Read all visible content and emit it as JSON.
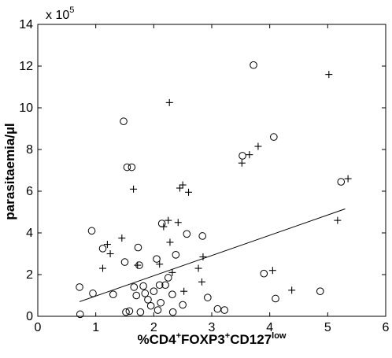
{
  "chart_data": {
    "type": "scatter",
    "title": "",
    "xlabel": {
      "parts": [
        {
          "text": "%CD4",
          "sup": false
        },
        {
          "text": "+",
          "sup": true
        },
        {
          "text": "FOXP3",
          "sup": false
        },
        {
          "text": "+",
          "sup": true
        },
        {
          "text": "CD127",
          "sup": false
        },
        {
          "text": "low",
          "sup": true
        }
      ]
    },
    "ylabel": "parasitaemia/µl",
    "y_multiplier": {
      "base": "x 10",
      "exponent": "5"
    },
    "xlim": [
      0,
      6
    ],
    "ylim": [
      0,
      14
    ],
    "x_ticks": [
      "0",
      "1",
      "2",
      "3",
      "4",
      "5",
      "6"
    ],
    "y_ticks": [
      "0",
      "2",
      "4",
      "6",
      "8",
      "10",
      "12",
      "14"
    ],
    "grid": false,
    "legend": null,
    "series": [
      {
        "marker": "circle",
        "points": [
          [
            0.72,
            1.4
          ],
          [
            0.73,
            0.1
          ],
          [
            0.93,
            4.1
          ],
          [
            0.95,
            1.1
          ],
          [
            1.12,
            3.25
          ],
          [
            1.3,
            1.05
          ],
          [
            1.48,
            9.35
          ],
          [
            1.5,
            2.6
          ],
          [
            1.52,
            0.2
          ],
          [
            1.54,
            7.15
          ],
          [
            1.58,
            0.25
          ],
          [
            1.62,
            7.15
          ],
          [
            1.66,
            1.4
          ],
          [
            1.7,
            1.0
          ],
          [
            1.73,
            3.3
          ],
          [
            1.75,
            2.45
          ],
          [
            1.77,
            0.2
          ],
          [
            1.82,
            1.45
          ],
          [
            1.85,
            1.1
          ],
          [
            1.9,
            0.8
          ],
          [
            1.95,
            0.5
          ],
          [
            2.0,
            1.2
          ],
          [
            2.05,
            2.75
          ],
          [
            2.07,
            0.3
          ],
          [
            2.1,
            1.5
          ],
          [
            2.12,
            0.65
          ],
          [
            2.14,
            4.45
          ],
          [
            2.2,
            1.5
          ],
          [
            2.25,
            1.85
          ],
          [
            2.32,
            1.05
          ],
          [
            2.33,
            0.2
          ],
          [
            2.38,
            2.95
          ],
          [
            2.5,
            0.55
          ],
          [
            2.57,
            3.95
          ],
          [
            2.84,
            3.85
          ],
          [
            2.93,
            0.9
          ],
          [
            3.1,
            0.35
          ],
          [
            3.22,
            0.3
          ],
          [
            3.53,
            7.7
          ],
          [
            3.72,
            12.05
          ],
          [
            3.9,
            2.05
          ],
          [
            4.07,
            8.6
          ],
          [
            4.1,
            0.85
          ],
          [
            4.87,
            1.2
          ],
          [
            5.23,
            6.45
          ]
        ]
      },
      {
        "marker": "plus",
        "points": [
          [
            1.12,
            2.3
          ],
          [
            1.2,
            3.45
          ],
          [
            1.25,
            3.0
          ],
          [
            1.45,
            3.75
          ],
          [
            1.65,
            6.1
          ],
          [
            1.72,
            2.45
          ],
          [
            2.1,
            2.5
          ],
          [
            2.17,
            4.3
          ],
          [
            2.25,
            4.6
          ],
          [
            2.27,
            10.25
          ],
          [
            2.28,
            3.55
          ],
          [
            2.32,
            2.1
          ],
          [
            2.42,
            4.5
          ],
          [
            2.45,
            6.15
          ],
          [
            2.5,
            6.3
          ],
          [
            2.52,
            1.2
          ],
          [
            2.6,
            5.95
          ],
          [
            2.77,
            2.3
          ],
          [
            2.83,
            1.65
          ],
          [
            2.85,
            2.85
          ],
          [
            3.52,
            7.35
          ],
          [
            3.65,
            7.75
          ],
          [
            3.8,
            8.15
          ],
          [
            4.05,
            2.2
          ],
          [
            4.38,
            1.25
          ],
          [
            5.02,
            11.6
          ],
          [
            5.17,
            4.6
          ],
          [
            5.35,
            6.6
          ]
        ]
      }
    ],
    "fit_line": {
      "x": [
        0.72,
        5.3
      ],
      "y": [
        0.7,
        5.15
      ]
    }
  }
}
